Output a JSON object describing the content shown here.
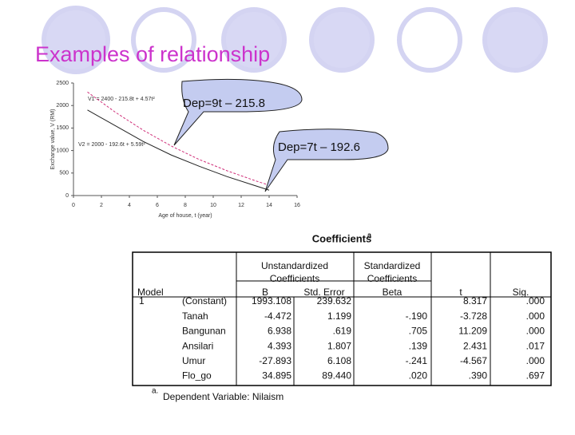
{
  "title": "Examples of relationship",
  "callouts": [
    "Dep=9t – 215.8",
    "Dep=7t – 192.6"
  ],
  "chart_data": {
    "type": "line",
    "xlabel": "Age of house, t (year)",
    "ylabel": "Exchange value, V (RM)",
    "equations": [
      "V1 = 2400 - 215.8t + 4.57t²",
      "V2 = 2000 - 192.6t + 5.59t²"
    ],
    "x": [
      1,
      3,
      5,
      7,
      9,
      11,
      13,
      14
    ],
    "series": [
      {
        "name": "V1",
        "color": "#d0307a",
        "dash": true,
        "values": [
          2300,
          1850,
          1450,
          1100,
          800,
          550,
          330,
          230
        ]
      },
      {
        "name": "V2",
        "color": "#222222",
        "dash": false,
        "values": [
          1900,
          1550,
          1200,
          900,
          650,
          420,
          220,
          120
        ]
      }
    ],
    "xlim": [
      0,
      16
    ],
    "xticks": [
      0,
      2,
      4,
      6,
      8,
      10,
      12,
      14,
      16
    ],
    "ylim": [
      0,
      2500
    ],
    "yticks": [
      0,
      500,
      1000,
      1500,
      2000,
      2500
    ]
  },
  "table": {
    "title": "Coefficients",
    "title_note": "a",
    "groups": [
      [
        "Unstandardized",
        "Coefficients"
      ],
      [
        "Standardized",
        "Coefficients"
      ]
    ],
    "columns": [
      "Model",
      "B",
      "Std. Error",
      "Beta",
      "t",
      "Sig."
    ],
    "model": "1",
    "rows": [
      {
        "label": "(Constant)",
        "B": "1993.108",
        "se": "239.632",
        "t": "8.317",
        "sig": ".000"
      },
      {
        "label": "Tanah",
        "B": "-4.472",
        "se": "1.199",
        "beta": "-.190",
        "t": "-3.728",
        "sig": ".000"
      },
      {
        "label": "Bangunan",
        "B": "6.938",
        "se": ".619",
        "beta": ".705",
        "t": "11.209",
        "sig": ".000"
      },
      {
        "label": "Ansilari",
        "B": "4.393",
        "se": "1.807",
        "beta": ".139",
        "t": "2.431",
        "sig": ".017"
      },
      {
        "label": "Umur",
        "B": "-27.893",
        "se": "6.108",
        "beta": "-.241",
        "t": "-4.567",
        "sig": ".000"
      },
      {
        "label": "Flo_go",
        "B": "34.895",
        "se": "89.440",
        "beta": ".020",
        "t": ".390",
        "sig": ".697"
      }
    ],
    "footnote_mark": "a.",
    "footnote": "Dependent Variable: Nilaism"
  }
}
